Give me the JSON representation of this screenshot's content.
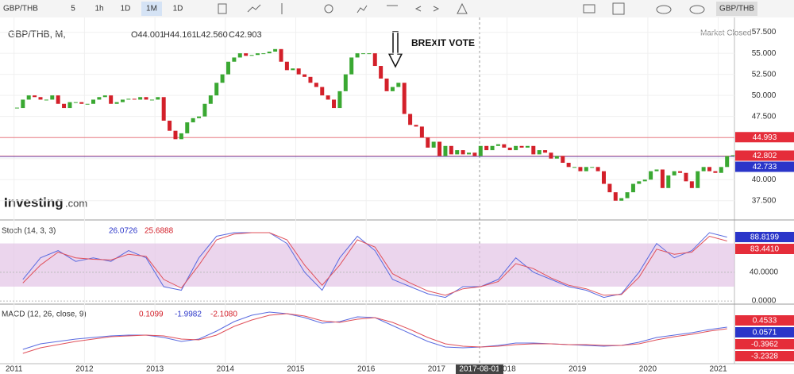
{
  "toolbar": {
    "symbol": "GBP/THB",
    "intervals": [
      "5",
      "1h",
      "1D",
      "1M",
      "1D"
    ],
    "right_symbol": "GBP/THB"
  },
  "market_status": "Market Closed",
  "logo": {
    "name": "Investing",
    "suffix": ".com"
  },
  "crosshair_label": "2017-08-01",
  "chart_data": [
    {
      "type": "candlestick",
      "title": "GBP/THB, M,",
      "ohlc_legend": [
        "O44.001",
        "H44.161",
        "L42.560",
        "C42.903"
      ],
      "annotation": "BREXIT VOTE",
      "up_color": "#3aa832",
      "down_color": "#d3202a",
      "close": [
        48.5,
        49.5,
        50,
        49.8,
        49.5,
        49.5,
        50,
        49,
        48.5,
        49.2,
        49.2,
        49,
        49,
        49.5,
        49.8,
        50,
        49,
        49.2,
        49.5,
        49.6,
        49.5,
        49.8,
        49.5,
        49.5,
        49.8,
        47,
        45.8,
        44.8,
        45.5,
        46.8,
        47.3,
        47.5,
        49,
        50,
        51.5,
        52.5,
        54,
        54.5,
        55,
        54.7,
        54.8,
        55,
        55,
        55.2,
        55.5,
        54,
        53,
        53.2,
        52.5,
        52.2,
        51.5,
        51,
        50,
        49.5,
        48.5,
        50.5,
        52.5,
        54.5,
        55,
        55,
        55,
        53.5,
        52,
        50.5,
        51,
        51.5,
        47.8,
        46.5,
        46.3,
        45,
        43.8,
        44.5,
        42.8,
        44,
        43,
        43.5,
        43,
        43.2,
        42.8,
        44,
        43.5,
        44,
        44.2,
        43.8,
        43.5,
        44,
        43.8,
        44,
        43,
        43.5,
        43.2,
        42.5,
        42.8,
        42,
        41.5,
        41.5,
        41,
        41.5,
        41.5,
        41,
        39.5,
        38.5,
        37.5,
        37.8,
        38.5,
        39.5,
        39.8,
        40,
        41,
        41.2,
        39,
        40.5,
        41,
        40.8,
        39.8,
        39,
        41,
        41.5,
        41,
        40.8,
        41.5,
        42.8,
        42.9
      ],
      "ylim": [
        35.4,
        58.5
      ],
      "yticks": [
        {
          "value": 37.5,
          "label": "37.500"
        },
        {
          "value": 40,
          "label": "40.000"
        },
        {
          "value": 42.5,
          "label": "42.500"
        },
        {
          "value": 45,
          "label": "45.000"
        },
        {
          "value": 47.5,
          "label": "47.500"
        },
        {
          "value": 50,
          "label": "50.000"
        },
        {
          "value": 52.5,
          "label": "52.500"
        },
        {
          "value": 55,
          "label": "55.000"
        },
        {
          "value": 57.5,
          "label": "57.500"
        }
      ],
      "xlim": [
        2010.8,
        2021.23
      ],
      "xticks": [
        2011,
        2012,
        2013,
        2014,
        2015,
        2016,
        2017,
        2018,
        2019,
        2020,
        2021
      ],
      "price_labels": [
        {
          "value": 44.993,
          "label": "44.993",
          "color": "#e52d3a"
        },
        {
          "value": 42.802,
          "label": "42.802",
          "color": "#e52d3a"
        },
        {
          "value": 42.733,
          "label": "42.733",
          "color": "#2a35c9"
        }
      ]
    },
    {
      "type": "line",
      "title": "Stoch (14, 3, 3)",
      "legend_values": [
        {
          "label": "26.0726",
          "color": "#2a35c9"
        },
        {
          "label": "25.6888",
          "color": "#d3202a"
        }
      ],
      "band": [
        20,
        80
      ],
      "band_color": "#e3c3e6",
      "series": [
        {
          "color": "#5a6be0",
          "values": [
            30,
            60,
            70,
            55,
            60,
            55,
            70,
            60,
            20,
            15,
            60,
            90,
            95,
            95,
            95,
            80,
            40,
            15,
            60,
            90,
            70,
            30,
            20,
            10,
            5,
            20,
            20,
            30,
            60,
            40,
            30,
            20,
            15,
            5,
            10,
            40,
            80,
            60,
            70,
            95,
            88.8
          ]
        },
        {
          "color": "#e0505a",
          "values": [
            25,
            50,
            68,
            60,
            58,
            57,
            65,
            62,
            30,
            18,
            50,
            85,
            93,
            95,
            95,
            85,
            50,
            22,
            50,
            85,
            75,
            38,
            25,
            14,
            8,
            17,
            20,
            27,
            52,
            45,
            32,
            22,
            17,
            8,
            9,
            33,
            72,
            65,
            68,
            90,
            83.4
          ]
        }
      ],
      "ylim": [
        -4.3,
        106
      ],
      "yticks": [
        {
          "value": 0,
          "label": "0.0000"
        },
        {
          "value": 40,
          "label": "40.0000"
        }
      ],
      "right_labels": [
        {
          "label": "88.8199",
          "color": "#2a35c9"
        },
        {
          "label": "83.4410",
          "color": "#e52d3a"
        }
      ]
    },
    {
      "type": "line",
      "title": "MACD (12, 26, close, 9)",
      "legend_values": [
        {
          "label": "0.1099",
          "color": "#d3202a"
        },
        {
          "label": "-1.9982",
          "color": "#2a35c9"
        },
        {
          "label": "-2.1080",
          "color": "#d3202a"
        }
      ],
      "series": [
        {
          "color": "#5a6be0",
          "values": [
            -1.5,
            -0.8,
            -0.5,
            -0.2,
            0,
            0.2,
            0.3,
            0.3,
            0,
            -0.5,
            -0.2,
            0.8,
            2,
            2.8,
            3.2,
            3,
            2.5,
            1.8,
            2,
            2.6,
            2.5,
            1.5,
            0.5,
            -0.5,
            -1.2,
            -1.3,
            -1.2,
            -1,
            -0.7,
            -0.7,
            -0.8,
            -0.9,
            -1,
            -1.1,
            -1,
            -0.6,
            0,
            0.3,
            0.6,
            1,
            1.3
          ]
        },
        {
          "color": "#e0505a",
          "values": [
            -2,
            -1.3,
            -0.9,
            -0.5,
            -0.2,
            0.1,
            0.2,
            0.3,
            0.2,
            -0.2,
            -0.3,
            0.3,
            1.4,
            2.2,
            2.8,
            3,
            2.7,
            2.1,
            1.9,
            2.3,
            2.5,
            1.9,
            1,
            0,
            -0.8,
            -1.1,
            -1.2,
            -1.1,
            -0.9,
            -0.8,
            -0.8,
            -0.9,
            -0.9,
            -1,
            -1,
            -0.8,
            -0.3,
            0.1,
            0.4,
            0.8,
            1.1
          ]
        }
      ],
      "ylim": [
        -4,
        4
      ],
      "right_labels": [
        {
          "label": "0.4533",
          "color": "#e52d3a"
        },
        {
          "label": "0.0571",
          "color": "#2a35c9"
        },
        {
          "label": "-0.3962",
          "color": "#e52d3a"
        },
        {
          "label": "-3.2328",
          "color": "#e52d3a"
        }
      ]
    }
  ]
}
